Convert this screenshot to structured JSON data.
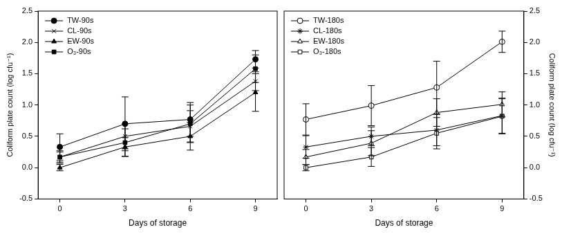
{
  "chart_data": [
    {
      "type": "line",
      "x_label": "Days of storage",
      "y_label": "Coliform plate count (log cfu⁻¹)",
      "x": [
        0,
        3,
        6,
        9
      ],
      "xlim": [
        -1,
        10
      ],
      "xticks": [
        0,
        3,
        6,
        9
      ],
      "ylim": [
        -0.5,
        2.5
      ],
      "yticks": [
        -0.5,
        {
          "value": 0,
          "label": "0.0"
        },
        0.5,
        {
          "value": 1,
          "label": "1.0"
        },
        1.5,
        {
          "value": 2,
          "label": "2.0"
        },
        2.5
      ],
      "grid": false,
      "legend": "upper left",
      "series": [
        {
          "name": "TW-90s",
          "color": "#000000",
          "marker": "circle",
          "line_style": "solid",
          "values": [
            0.33,
            0.7,
            0.77,
            1.73
          ],
          "errors": [
            0.21,
            0.43,
            0.27,
            0.14
          ]
        },
        {
          "name": "CL-90s",
          "color": "#000000",
          "marker": "x",
          "line_style": "solid",
          "values": [
            0.17,
            0.5,
            0.66,
            1.38
          ],
          "errors": [
            0.1,
            0.2,
            0.25,
            0.15
          ]
        },
        {
          "name": "EW-90s",
          "color": "#000000",
          "marker": "triangle",
          "line_style": "solid",
          "values": [
            0.0,
            0.33,
            0.5,
            1.2
          ],
          "errors": [
            0.05,
            0.15,
            0.22,
            0.3
          ]
        },
        {
          "name": "O₃-90s",
          "color": "#000000",
          "marker": "square",
          "line_style": "solid",
          "values": [
            0.17,
            0.4,
            0.7,
            1.58
          ],
          "errors": [
            0.08,
            0.22,
            0.3,
            0.22
          ]
        }
      ]
    },
    {
      "type": "line",
      "x_label": "Days of storage",
      "y_label": "Coliform plate count (log cfu⁻¹)",
      "x": [
        0,
        3,
        6,
        9
      ],
      "xlim": [
        -1,
        10
      ],
      "xticks": [
        0,
        3,
        6,
        9
      ],
      "ylim": [
        -0.5,
        2.5
      ],
      "yticks": [
        -0.5,
        {
          "value": 0,
          "label": "0.0"
        },
        0.5,
        {
          "value": 1,
          "label": "1.0"
        },
        1.5,
        {
          "value": 2,
          "label": "2.0"
        },
        2.5
      ],
      "grid": false,
      "legend": "upper left",
      "series": [
        {
          "name": "TW-180s",
          "color": "#000000",
          "marker": "open_circle",
          "line_style": "solid",
          "values": [
            0.77,
            0.99,
            1.28,
            2.01
          ],
          "errors": [
            0.25,
            0.32,
            0.42,
            0.17
          ]
        },
        {
          "name": "CL-180s",
          "color": "#000000",
          "marker": "star",
          "line_style": "solid",
          "values": [
            0.33,
            0.5,
            0.6,
            0.83
          ],
          "errors": [
            0.18,
            0.15,
            0.25,
            0.28
          ]
        },
        {
          "name": "EW-180s",
          "color": "#000000",
          "marker": "open_triangle",
          "line_style": "solid",
          "values": [
            0.17,
            0.39,
            0.88,
            1.01
          ],
          "errors": [
            0.12,
            0.2,
            0.22,
            0.2
          ]
        },
        {
          "name": "O₃-180s",
          "color": "#000000",
          "marker": "open_square",
          "line_style": "solid",
          "values": [
            0.0,
            0.17,
            0.55,
            0.82
          ],
          "errors": [
            0.05,
            0.15,
            0.25,
            0.28
          ]
        }
      ]
    }
  ]
}
